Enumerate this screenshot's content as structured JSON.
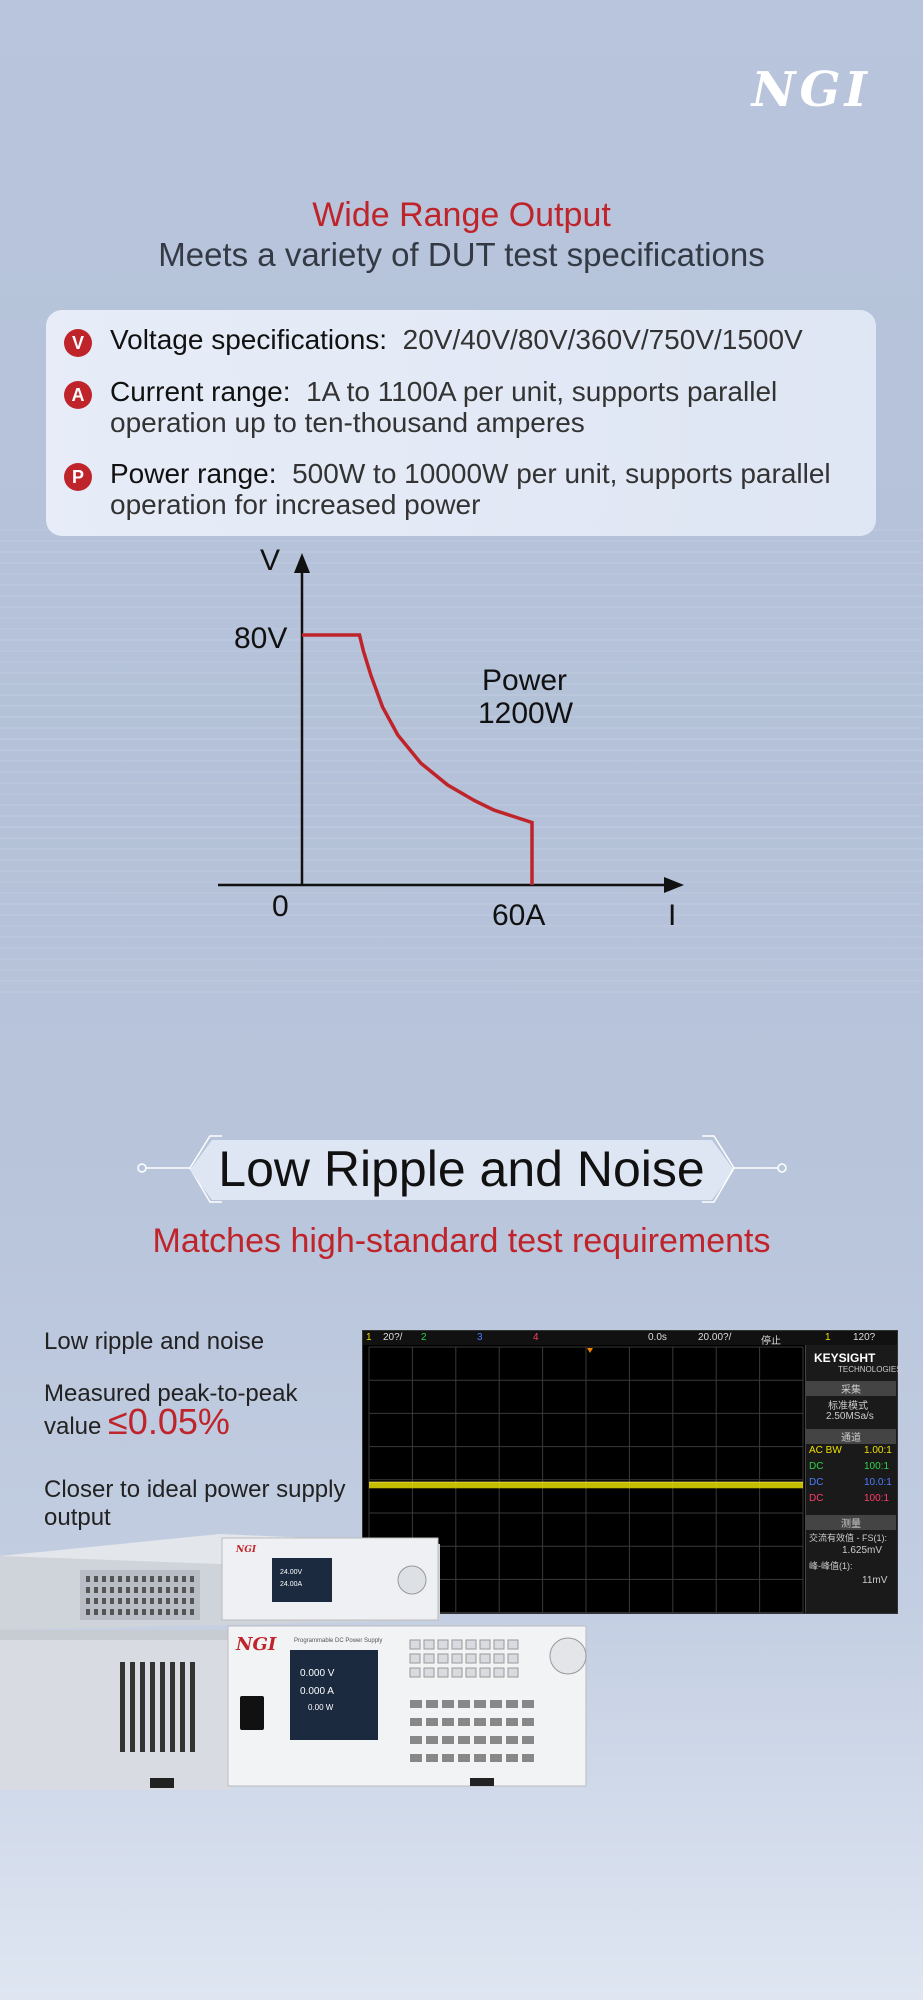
{
  "brand": {
    "logo": "NGI"
  },
  "section1": {
    "title": "Wide Range Output",
    "subtitle": "Meets a variety of DUT test specifications",
    "specs": [
      {
        "badge": "V",
        "key": "Voltage specifications:",
        "value": "20V/40V/80V/360V/750V/1500V",
        "line2": ""
      },
      {
        "badge": "A",
        "key": "Current range:",
        "value": "1A to 1100A per unit, supports parallel",
        "line2": "operation up to ten-thousand amperes"
      },
      {
        "badge": "P",
        "key": "Power range:",
        "value": "500W to 10000W per unit, supports parallel",
        "line2": "operation for increased power"
      }
    ]
  },
  "chart_data": {
    "type": "line",
    "title": "",
    "xlabel": "I",
    "ylabel": "V",
    "origin_label": "0",
    "x_marker_label": "60A",
    "y_marker_label": "80V",
    "annotation": [
      "Power",
      "1200W"
    ],
    "series": [
      {
        "values": [
          [
            0,
            80
          ],
          [
            15,
            80
          ],
          [
            16,
            75
          ],
          [
            18,
            67
          ],
          [
            21,
            57
          ],
          [
            25,
            48
          ],
          [
            31,
            39
          ],
          [
            38,
            32
          ],
          [
            45,
            27
          ],
          [
            50,
            24
          ],
          [
            60,
            20
          ],
          [
            60,
            0
          ]
        ]
      }
    ],
    "xlim": [
      0,
      60
    ],
    "ylim": [
      0,
      80
    ],
    "line_color": "#c0242b"
  },
  "section2": {
    "title": "Low Ripple and Noise",
    "subtitle": "Matches high-standard test requirements",
    "line1": "Low ripple and noise",
    "line2a": "Measured peak-to-peak",
    "line2b": "value",
    "highlight": "≤0.05%",
    "line3a": "Closer to ideal power supply",
    "line3b": "output"
  },
  "scope": {
    "top": {
      "ch1": "1",
      "v1": "20?/",
      "ch2": "2",
      "ch3": "3",
      "ch4": "4",
      "time": "0.0s",
      "timebase": "20.00?/",
      "status": "停止",
      "trig": "1",
      "trig_val": "120?"
    },
    "brand": "KEYSIGHT",
    "brand_sub": "TECHNOLOGIES",
    "acq_header": "采集",
    "acq_mode": "标准模式",
    "acq_rate": "2.50MSa/s",
    "chan_header": "通道",
    "channels": [
      {
        "label": "AC BW",
        "ratio": "1.00:1",
        "color": "#f0e000"
      },
      {
        "label": "DC",
        "ratio": "100:1",
        "color": "#2fd14a"
      },
      {
        "label": "DC",
        "ratio": "10.0:1",
        "color": "#4d7dff"
      },
      {
        "label": "DC",
        "ratio": "100:1",
        "color": "#ff3d6a"
      }
    ],
    "meas_header": "测量",
    "meas1_label": "交流有效值 - FS(1):",
    "meas1_value": "1.625mV",
    "meas2_label": "峰-峰值(1):",
    "meas2_value": "11mV"
  },
  "device": {
    "small_screen_v": "24.00V",
    "small_screen_a": "24.00A",
    "large_screen_v": "0.000 V",
    "large_screen_a": "0.000 A",
    "large_screen_w": "0.00 W",
    "model_label": "Programmable DC Power Supply",
    "logo": "NGI"
  },
  "colors": {
    "accent": "#c0242b",
    "background": "#b8c5dc"
  }
}
